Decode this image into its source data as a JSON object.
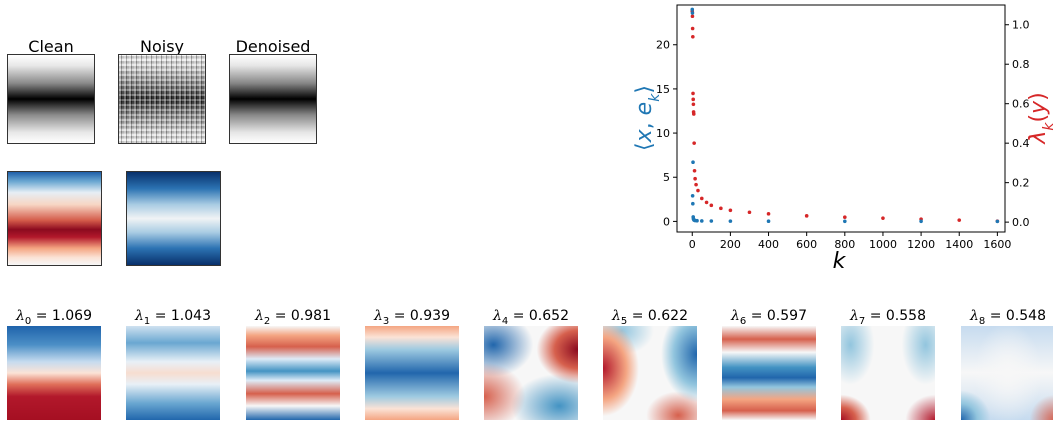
{
  "images": {
    "titles": [
      "Clean",
      "Noisy",
      "Denoised"
    ]
  },
  "eigen_panels": [
    {
      "sub": "0",
      "value": "1.069"
    },
    {
      "sub": "1",
      "value": "1.043"
    },
    {
      "sub": "2",
      "value": "0.981"
    },
    {
      "sub": "3",
      "value": "0.939"
    },
    {
      "sub": "4",
      "value": "0.652"
    },
    {
      "sub": "5",
      "value": "0.622"
    },
    {
      "sub": "6",
      "value": "0.597"
    },
    {
      "sub": "7",
      "value": "0.558"
    },
    {
      "sub": "8",
      "value": "0.548"
    }
  ],
  "chart_data": {
    "type": "scatter",
    "title": "",
    "xlabel": "k",
    "ylabel_left": "⟨x, e_k⟩",
    "ylabel_right": "λ_k(y)",
    "xlim": [
      -80,
      1640
    ],
    "ylim_left": [
      -1.2,
      24.5
    ],
    "ylim_right": [
      -0.05,
      1.1
    ],
    "x_ticks": [
      "0",
      "200",
      "400",
      "600",
      "800",
      "1000",
      "1200",
      "1400",
      "1600"
    ],
    "y_left_ticks": [
      "0",
      "5",
      "10",
      "15",
      "20"
    ],
    "y_right_ticks": [
      "0.0",
      "0.2",
      "0.4",
      "0.6",
      "0.8",
      "1.0"
    ],
    "colors": {
      "coefficients": "#1f77b4",
      "eigenvalues": "#d62728"
    },
    "series": [
      {
        "axis": "left",
        "points": [
          [
            0,
            24.0
          ],
          [
            1,
            23.6
          ],
          [
            2,
            2.9
          ],
          [
            3,
            2.0
          ],
          [
            4,
            6.7
          ],
          [
            5,
            0.5
          ],
          [
            6,
            0.3
          ],
          [
            8,
            0.2
          ],
          [
            10,
            0.15
          ],
          [
            15,
            0.1
          ],
          [
            25,
            0.08
          ],
          [
            50,
            0.05
          ],
          [
            100,
            0.04
          ],
          [
            200,
            0.03
          ],
          [
            400,
            0.02
          ],
          [
            800,
            0.01
          ],
          [
            1200,
            0.01
          ],
          [
            1600,
            0.0
          ]
        ]
      },
      {
        "axis": "right",
        "points": [
          [
            0,
            1.069
          ],
          [
            1,
            1.043
          ],
          [
            2,
            0.981
          ],
          [
            3,
            0.939
          ],
          [
            4,
            0.652
          ],
          [
            5,
            0.622
          ],
          [
            6,
            0.597
          ],
          [
            7,
            0.558
          ],
          [
            8,
            0.548
          ],
          [
            10,
            0.4
          ],
          [
            12,
            0.26
          ],
          [
            15,
            0.22
          ],
          [
            20,
            0.19
          ],
          [
            30,
            0.16
          ],
          [
            50,
            0.12
          ],
          [
            75,
            0.1
          ],
          [
            100,
            0.085
          ],
          [
            150,
            0.07
          ],
          [
            200,
            0.06
          ],
          [
            300,
            0.05
          ],
          [
            400,
            0.042
          ],
          [
            600,
            0.032
          ],
          [
            800,
            0.025
          ],
          [
            1000,
            0.02
          ],
          [
            1200,
            0.015
          ],
          [
            1400,
            0.01
          ],
          [
            1600,
            0.005
          ]
        ]
      }
    ]
  }
}
